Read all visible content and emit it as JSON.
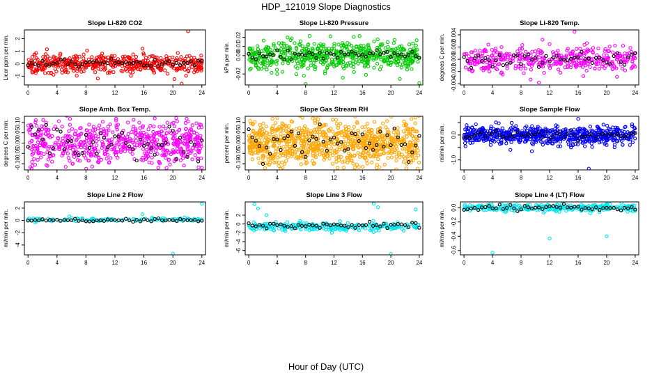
{
  "figure": {
    "title": "HDP_121019  Slope Diagnostics",
    "xlabel": "Hour of Day (UTC)"
  },
  "chart_data": [
    {
      "type": "scatter",
      "title": "Slope Li-820 CO2",
      "ylabel": "Licor ppm per min.",
      "color": "#ff0000",
      "xlim": [
        -0.5,
        24.5
      ],
      "ylim": [
        -1.7,
        2.7
      ],
      "xticks": [
        0,
        4,
        8,
        12,
        16,
        20,
        24
      ],
      "yticks": [
        -1,
        0,
        1,
        2
      ],
      "ytick_labels": [
        "-1",
        "0",
        "1",
        "2"
      ],
      "cloud": {
        "n": 500,
        "center": 0.0,
        "spread": 0.35
      },
      "hourly_center": 0.0,
      "hourly_spread": 0.15,
      "outliers": [
        [
          22.1,
          2.6
        ],
        [
          15.8,
          1.2
        ],
        [
          21.2,
          -1.6
        ],
        [
          5.5,
          -0.7
        ]
      ]
    },
    {
      "type": "scatter",
      "title": "Slope Li-820 Pressure",
      "ylabel": "kPa per min.",
      "color": "#00cc00",
      "xlim": [
        -0.5,
        24.5
      ],
      "ylim": [
        -0.032,
        0.028
      ],
      "xticks": [
        0,
        4,
        8,
        12,
        16,
        20,
        24
      ],
      "yticks": [
        -0.02,
        0.0,
        0.01,
        0.02
      ],
      "ytick_labels": [
        "-0.02",
        "0.00",
        "0.01",
        "0.02"
      ],
      "cloud": {
        "n": 600,
        "center": 0.0,
        "spread": 0.008
      },
      "hourly_center": 0.0,
      "hourly_spread": 0.003,
      "outliers": [
        [
          8.0,
          -0.031
        ],
        [
          11.5,
          0.021
        ],
        [
          24.0,
          -0.03
        ],
        [
          0.3,
          -0.014
        ],
        [
          4.0,
          -0.02
        ],
        [
          16.5,
          -0.021
        ]
      ]
    },
    {
      "type": "scatter",
      "title": "Slope Li-820 Temp.",
      "ylabel": "degrees C per min.",
      "color": "#ff00ff",
      "xlim": [
        -0.5,
        24.5
      ],
      "ylim": [
        -0.0042,
        0.0048
      ],
      "xticks": [
        0,
        4,
        8,
        12,
        16,
        20,
        24
      ],
      "yticks": [
        -0.004,
        -0.002,
        0.0,
        0.002,
        0.004
      ],
      "ytick_labels": [
        "-0.004",
        "-0.002",
        "0.000",
        "0.002",
        "0.004"
      ],
      "cloud": {
        "n": 420,
        "center": 0.0,
        "spread": 0.001
      },
      "hourly_center": 0.0,
      "hourly_spread": 0.0006,
      "outliers": [
        [
          15.5,
          0.0045
        ],
        [
          11.0,
          0.0032
        ],
        [
          12.0,
          0.0025
        ],
        [
          10.5,
          -0.0038
        ]
      ]
    },
    {
      "type": "scatter",
      "title": "Slope Amb. Box Temp.",
      "ylabel": "degrees C per min.",
      "color": "#ff00ff",
      "xlim": [
        -0.5,
        24.5
      ],
      "ylim": [
        -0.13,
        0.13
      ],
      "xticks": [
        0,
        4,
        8,
        12,
        16,
        20,
        24
      ],
      "yticks": [
        -0.1,
        -0.05,
        0.0,
        0.05,
        0.1
      ],
      "ytick_labels": [
        "-0.10",
        "-0.05",
        "0.00",
        "0.05",
        "0.10"
      ],
      "cloud": {
        "n": 650,
        "center": 0.0,
        "spread": 0.05
      },
      "hourly_center": 0.0,
      "hourly_spread": 0.04,
      "outliers": [
        [
          5.2,
          -0.115
        ],
        [
          24.0,
          -0.12
        ],
        [
          17.5,
          0.12
        ]
      ]
    },
    {
      "type": "scatter",
      "title": "Slope Gas Stream RH",
      "ylabel": "percent per min.",
      "color": "#ffa500",
      "xlim": [
        -0.5,
        24.5
      ],
      "ylim": [
        -0.13,
        0.13
      ],
      "xticks": [
        0,
        4,
        8,
        12,
        16,
        20,
        24
      ],
      "yticks": [
        -0.1,
        -0.05,
        0.0,
        0.05,
        0.1
      ],
      "ytick_labels": [
        "-0.10",
        "-0.05",
        "0.00",
        "0.05",
        "0.10"
      ],
      "cloud": {
        "n": 900,
        "center": 0.0,
        "spread": 0.055
      },
      "hourly_center": 0.0,
      "hourly_spread": 0.04,
      "outliers": [
        [
          9.0,
          0.12
        ],
        [
          12.5,
          -0.12
        ],
        [
          18.0,
          -0.12
        ]
      ]
    },
    {
      "type": "scatter",
      "title": "Slope Sample Flow",
      "ylabel": "ml/min per min.",
      "color": "#0000ff",
      "xlim": [
        -0.5,
        24.5
      ],
      "ylim": [
        -1.4,
        0.75
      ],
      "xticks": [
        0,
        4,
        8,
        12,
        16,
        20,
        24
      ],
      "yticks": [
        -1.0,
        -0.5,
        0.0,
        0.5
      ],
      "ytick_labels": [
        "-1.0",
        "",
        "0.0",
        ""
      ],
      "cloud": {
        "n": 650,
        "center": 0.0,
        "spread": 0.18
      },
      "hourly_center": 0.0,
      "hourly_spread": 0.08,
      "outliers": [
        [
          16.0,
          0.65
        ],
        [
          17.5,
          -1.35
        ],
        [
          6.5,
          -0.6
        ],
        [
          13.5,
          -0.45
        ],
        [
          0.2,
          -0.45
        ],
        [
          15.0,
          -0.5
        ],
        [
          20.0,
          -0.4
        ]
      ]
    },
    {
      "type": "scatter",
      "title": "Slope Line 2 Flow",
      "ylabel": "ml/min per min.",
      "color": "#00e5ee",
      "xlim": [
        -0.5,
        24.5
      ],
      "ylim": [
        -5.6,
        3.0
      ],
      "xticks": [
        0,
        4,
        8,
        12,
        16,
        20,
        24
      ],
      "yticks": [
        -4,
        -2,
        0,
        2
      ],
      "ytick_labels": [
        "-4",
        "-2",
        "0",
        "2"
      ],
      "cloud": {
        "n": 120,
        "center": 0.1,
        "spread": 0.15
      },
      "hourly_center": 0.0,
      "hourly_spread": 0.1,
      "outliers": [
        [
          24.0,
          2.7
        ],
        [
          20.0,
          -5.4
        ],
        [
          15.8,
          1.0
        ]
      ]
    },
    {
      "type": "scatter",
      "title": "Slope Line 3 Flow",
      "ylabel": "ml/min per min.",
      "color": "#00e5ee",
      "xlim": [
        -0.5,
        24.5
      ],
      "ylim": [
        -7.0,
        5.0
      ],
      "xticks": [
        0,
        4,
        8,
        12,
        16,
        20,
        24
      ],
      "yticks": [
        -6,
        -4,
        -2,
        0,
        2
      ],
      "ytick_labels": [
        "-6",
        "-4",
        "-2",
        "0",
        "2"
      ],
      "cloud": {
        "n": 260,
        "center": -0.6,
        "spread": 0.45
      },
      "hourly_center": -0.3,
      "hourly_spread": 0.4,
      "outliers": [
        [
          0.8,
          4.5
        ],
        [
          1.3,
          3.5
        ],
        [
          17.6,
          4.6
        ],
        [
          18.2,
          3.8
        ],
        [
          23.5,
          3.3
        ],
        [
          20.0,
          -6.8
        ],
        [
          2.5,
          2.0
        ]
      ]
    },
    {
      "type": "scatter",
      "title": "Slope Line 4 (LT) Flow",
      "ylabel": "ml/min per min.",
      "color": "#00e5ee",
      "xlim": [
        -0.5,
        24.5
      ],
      "ylim": [
        -0.66,
        0.08
      ],
      "xticks": [
        0,
        4,
        8,
        12,
        16,
        20,
        24
      ],
      "yticks": [
        -0.6,
        -0.4,
        -0.2,
        0.0
      ],
      "ytick_labels": [
        "-0.6",
        "-0.4",
        "-0.2",
        "0.0"
      ],
      "cloud": {
        "n": 320,
        "center": 0.0,
        "spread": 0.025
      },
      "hourly_center": 0.0,
      "hourly_spread": 0.02,
      "outliers": [
        [
          4.0,
          -0.63
        ],
        [
          12.0,
          -0.43
        ],
        [
          20.0,
          -0.4
        ]
      ]
    }
  ]
}
